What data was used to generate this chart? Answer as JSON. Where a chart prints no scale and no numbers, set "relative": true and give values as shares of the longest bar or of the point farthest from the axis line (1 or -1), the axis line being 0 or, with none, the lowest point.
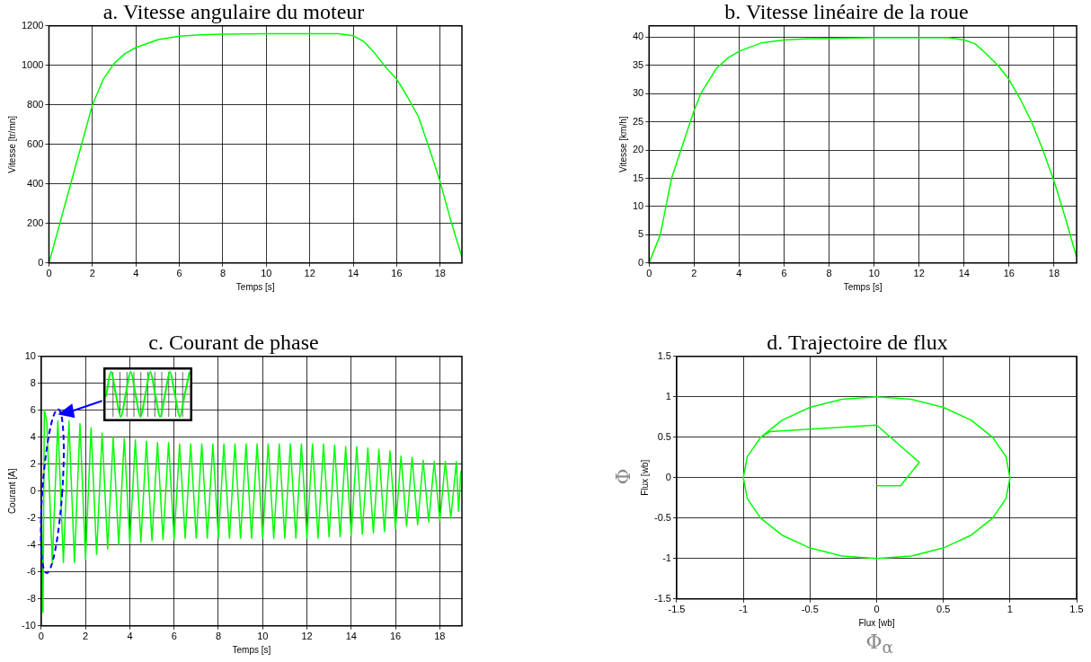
{
  "chart_data": [
    {
      "type": "line",
      "title": "a. Vitesse angulaire du moteur",
      "xlabel": "Temps [s]",
      "ylabel": "Vitesse [tr/mn]",
      "xlim": [
        0,
        19
      ],
      "xticks": [
        0,
        2,
        4,
        6,
        8,
        10,
        12,
        14,
        16,
        18
      ],
      "ylim": [
        0,
        1200
      ],
      "yticks": [
        0,
        200,
        400,
        600,
        800,
        1000,
        1200
      ],
      "grid": true,
      "marker": "none",
      "line_style": "solid",
      "series": [
        {
          "color": "#00ff00",
          "x": [
            0,
            0.5,
            1,
            1.5,
            2,
            2.5,
            3,
            3.5,
            4,
            5,
            6,
            7,
            8,
            10,
            12,
            13.3,
            14,
            14.5,
            15,
            15.5,
            16,
            16.5,
            17,
            17.5,
            18,
            18.5,
            19
          ],
          "values": [
            0,
            200,
            400,
            600,
            800,
            930,
            1010,
            1060,
            1090,
            1130,
            1148,
            1155,
            1158,
            1160,
            1160,
            1160,
            1150,
            1120,
            1060,
            990,
            930,
            840,
            740,
            580,
            410,
            210,
            30
          ]
        }
      ]
    },
    {
      "type": "line",
      "title": "b. Vitesse linéaire de la roue",
      "xlabel": "Temps [s]",
      "ylabel": "Vitesse [km/h]",
      "xlim": [
        0,
        19
      ],
      "xticks": [
        0,
        2,
        4,
        6,
        8,
        10,
        12,
        14,
        16,
        18
      ],
      "ylim": [
        0,
        42
      ],
      "yticks": [
        0,
        5,
        10,
        15,
        20,
        25,
        30,
        35,
        40
      ],
      "grid": true,
      "marker": "none",
      "line_style": "solid",
      "series": [
        {
          "color": "#00ff00",
          "x": [
            0,
            0.5,
            1,
            1.5,
            2,
            2.3,
            3,
            3.5,
            4,
            5,
            6,
            7,
            8,
            10,
            13.3,
            14,
            14.5,
            15,
            15.5,
            16,
            16.5,
            17,
            17.5,
            18,
            18.5,
            19
          ],
          "values": [
            0,
            5,
            15,
            21,
            27,
            30,
            34.5,
            36.3,
            37.5,
            39,
            39.5,
            39.7,
            39.8,
            39.9,
            39.9,
            39.5,
            38.8,
            37,
            35,
            32.5,
            29,
            25,
            20,
            14.5,
            8,
            1
          ]
        }
      ]
    },
    {
      "type": "line",
      "title": "c. Courant de phase",
      "xlabel": "Temps [s]",
      "ylabel": "Courant [A]",
      "xlim": [
        0,
        19
      ],
      "xticks": [
        0,
        2,
        4,
        6,
        8,
        10,
        12,
        14,
        16,
        18
      ],
      "ylim": [
        -10,
        10
      ],
      "yticks": [
        -10,
        -8,
        -6,
        -4,
        -2,
        0,
        2,
        4,
        6,
        8,
        10
      ],
      "grid": true,
      "marker": "none",
      "line_style": "solid",
      "series": [
        {
          "color": "#00ff00",
          "x": [
            0,
            0.08,
            0.14,
            0.25,
            0.5,
            0.75,
            1,
            1.25,
            1.5,
            1.75,
            2,
            2.25,
            2.5,
            2.75,
            3,
            3.25,
            3.5,
            3.75,
            4,
            4.25,
            4.5,
            4.75,
            5,
            5.25,
            5.5,
            5.75,
            6,
            6.25,
            6.5,
            6.75,
            7,
            7.25,
            7.5,
            7.75,
            8,
            8.25,
            8.5,
            8.75,
            9,
            9.25,
            9.5,
            9.75,
            10,
            10.25,
            10.5,
            10.75,
            11,
            11.25,
            11.5,
            11.75,
            12,
            12.25,
            12.5,
            12.75,
            13,
            13.25,
            13.5,
            13.75,
            14,
            14.25,
            14.5,
            14.75,
            15,
            15.25,
            15.5,
            15.75,
            16,
            16.25,
            16.5,
            16.75,
            17,
            17.25,
            17.5,
            17.75,
            18,
            18.25,
            18.5,
            18.75,
            18.85,
            18.95
          ],
          "values": [
            0,
            -9,
            6,
            5.2,
            -5.3,
            5.2,
            -5.3,
            5.2,
            -5.3,
            5.0,
            -5.1,
            4.7,
            -4.7,
            4.3,
            -4.3,
            4.0,
            -4.0,
            3.9,
            -3.9,
            3.8,
            -3.8,
            3.7,
            -3.7,
            3.6,
            -3.6,
            3.6,
            -3.6,
            3.5,
            -3.5,
            3.5,
            -3.5,
            3.5,
            -3.5,
            3.5,
            -3.5,
            3.5,
            -3.5,
            3.5,
            -3.5,
            3.5,
            -3.5,
            3.5,
            -3.5,
            3.5,
            -3.5,
            3.5,
            -3.5,
            3.5,
            -3.5,
            3.5,
            -3.5,
            3.5,
            -3.5,
            3.5,
            -3.4,
            3.4,
            -3.4,
            3.3,
            -3.3,
            3.3,
            -3.2,
            3.2,
            -3.1,
            3.1,
            -3.0,
            3.0,
            -2.8,
            2.6,
            -2.6,
            2.5,
            -2.5,
            2.3,
            -2.3,
            2.2,
            -2.2,
            2.2,
            -2.0,
            2.2,
            -1.5,
            1.5
          ]
        }
      ]
    },
    {
      "type": "line",
      "title": "d. Trajectoire de flux",
      "xlabel": "Flux [wb]",
      "ylabel": "Flux [wb]",
      "xlim": [
        -1.5,
        1.5
      ],
      "xticks": [
        -1.5,
        -1,
        -0.5,
        0,
        0.5,
        1,
        1.5
      ],
      "ylim": [
        -1.5,
        1.5
      ],
      "yticks": [
        -1.5,
        -1,
        -0.5,
        0,
        0.5,
        1,
        1.5
      ],
      "grid": true,
      "marker": "none",
      "line_style": "solid",
      "annotations": [
        "Φ",
        "Φ$_{α}$"
      ],
      "series": [
        {
          "color": "#00ff00",
          "x": [
            0,
            0.18,
            0.32,
            0,
            -0.8,
            -0.87,
            -0.97,
            -1,
            -0.97,
            -0.87,
            -0.71,
            -0.5,
            -0.26,
            0,
            0.26,
            0.5,
            0.71,
            0.87,
            0.97,
            1,
            0.97,
            0.87,
            0.71,
            0.5,
            0.26,
            0,
            -0.26,
            -0.5,
            -0.71,
            -0.87
          ],
          "values": [
            -0.1,
            -0.1,
            0.19,
            0.65,
            0.57,
            0.5,
            0.26,
            0,
            -0.26,
            -0.5,
            -0.71,
            -0.87,
            -0.97,
            -1,
            -0.97,
            -0.87,
            -0.71,
            -0.5,
            -0.26,
            0,
            0.26,
            0.5,
            0.71,
            0.87,
            0.97,
            1,
            0.97,
            0.87,
            0.71,
            0.5
          ]
        }
      ]
    },
    {
      "type": "line",
      "relative": true,
      "grid": true,
      "tick_labels": false,
      "marker": "none",
      "line_style": "solid",
      "categories": [
        null,
        null,
        null,
        null,
        null,
        null,
        null,
        null,
        null,
        null,
        null,
        null,
        null,
        null,
        null,
        null,
        null,
        null
      ],
      "series": [
        {
          "color": "#00ff00",
          "values": [
            0.45,
            1,
            0.5,
            0,
            0.5,
            1,
            0.5,
            0,
            0.5,
            1,
            0.5,
            0,
            0.5,
            1,
            0.5,
            0,
            0.5,
            1
          ]
        }
      ]
    }
  ]
}
